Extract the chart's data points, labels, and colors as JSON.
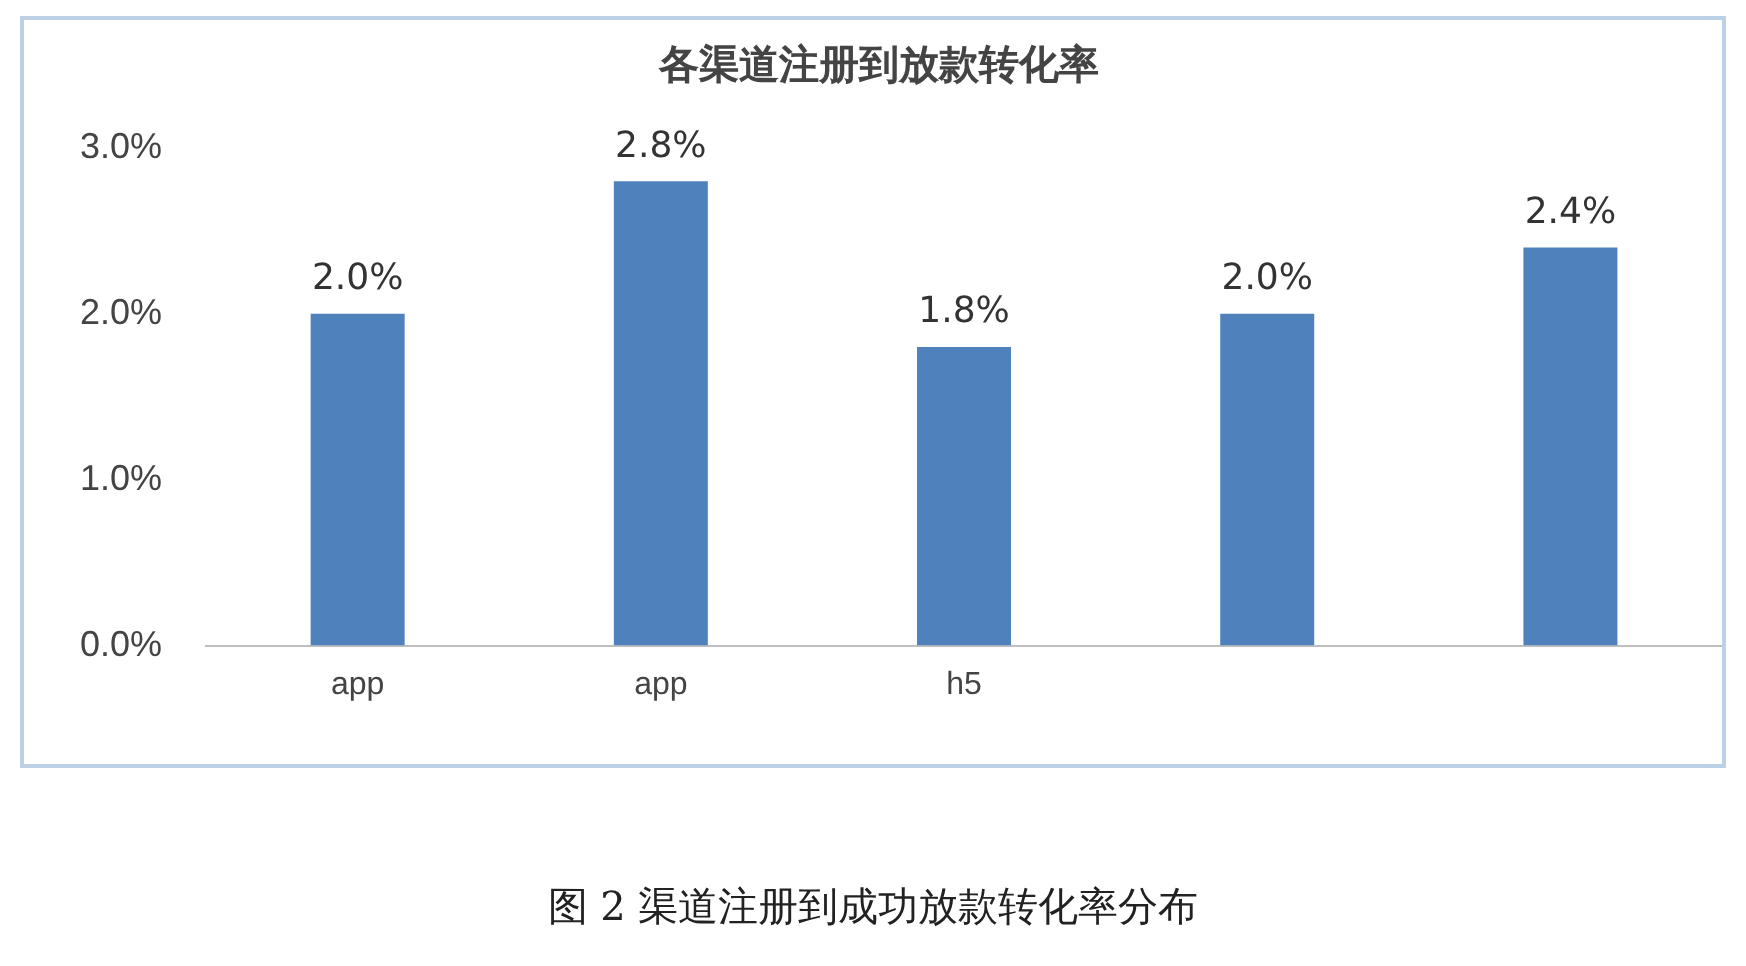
{
  "chart_data": {
    "type": "bar",
    "title": "各渠道注册到放款转化率",
    "categories": [
      "app",
      "app",
      "h5",
      null,
      null
    ],
    "values": [
      2.0,
      2.8,
      1.8,
      2.0,
      2.4
    ],
    "value_labels": [
      "2.0%",
      "2.8%",
      "1.8%",
      "2.0%",
      "2.4%"
    ],
    "color": "#4f81bd",
    "ylim": [
      0,
      3
    ],
    "yticks": [
      {
        "value": 0,
        "label": "0.0%"
      },
      {
        "value": 1,
        "label": "1.0%"
      },
      {
        "value": 2,
        "label": "2.0%"
      },
      {
        "value": 3,
        "label": "3.0%"
      }
    ],
    "grid": false,
    "legend": false,
    "annotations": [
      "图 2 渠道注册到成功放款转化率分布"
    ]
  }
}
